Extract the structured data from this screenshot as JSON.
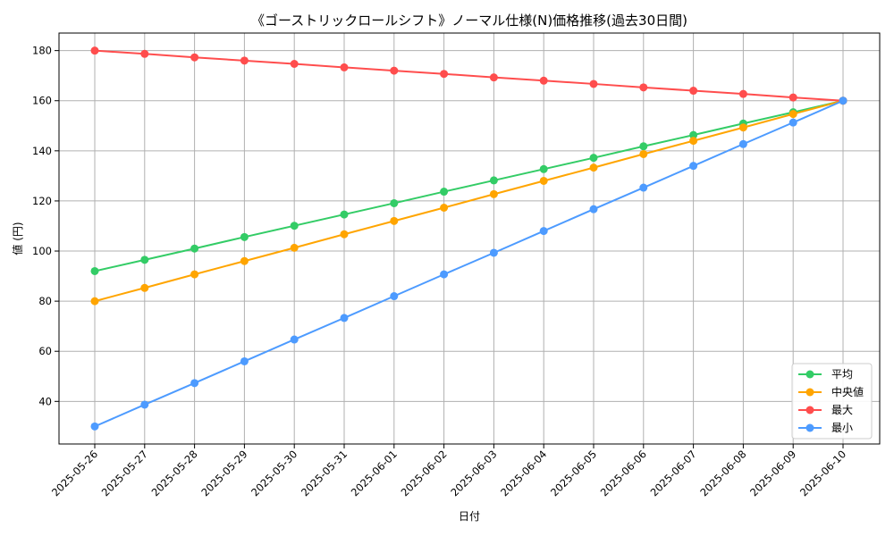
{
  "chart_data": {
    "type": "line",
    "title": "《ゴーストリックロールシフト》ノーマル仕様(N)価格推移(過去30日間)",
    "xlabel": "日付",
    "ylabel": "値 (円)",
    "ylim": [
      23,
      187
    ],
    "yticks": [
      40,
      60,
      80,
      100,
      120,
      140,
      160,
      180
    ],
    "grid": true,
    "legend_position": "lower-right",
    "categories": [
      "2025-05-26",
      "2025-05-27",
      "2025-05-28",
      "2025-05-29",
      "2025-05-30",
      "2025-05-31",
      "2025-06-01",
      "2025-06-02",
      "2025-06-03",
      "2025-06-04",
      "2025-06-05",
      "2025-06-06",
      "2025-06-07",
      "2025-06-08",
      "2025-06-09",
      "2025-06-10"
    ],
    "series": [
      {
        "name": "平均",
        "color": "#33cc66",
        "values": [
          92,
          96.5,
          101,
          105.6,
          110.1,
          114.6,
          119.1,
          123.7,
          128.2,
          132.7,
          137.2,
          141.8,
          146.3,
          150.9,
          155.4,
          160
        ]
      },
      {
        "name": "中央値",
        "color": "#ffa500",
        "values": [
          80,
          85.3,
          90.7,
          96,
          101.3,
          106.7,
          112,
          117.3,
          122.7,
          128,
          133.3,
          138.7,
          144,
          149.3,
          154.7,
          160
        ]
      },
      {
        "name": "最大",
        "color": "#ff4d4d",
        "values": [
          180,
          178.7,
          177.3,
          176,
          174.7,
          173.3,
          172,
          170.7,
          169.3,
          168,
          166.7,
          165.3,
          164,
          162.7,
          161.3,
          160
        ]
      },
      {
        "name": "最小",
        "color": "#4d9bff",
        "values": [
          30,
          38.7,
          47.3,
          56,
          64.7,
          73.3,
          82,
          90.7,
          99.3,
          108,
          116.7,
          125.3,
          134,
          142.7,
          151.3,
          160
        ]
      }
    ]
  }
}
